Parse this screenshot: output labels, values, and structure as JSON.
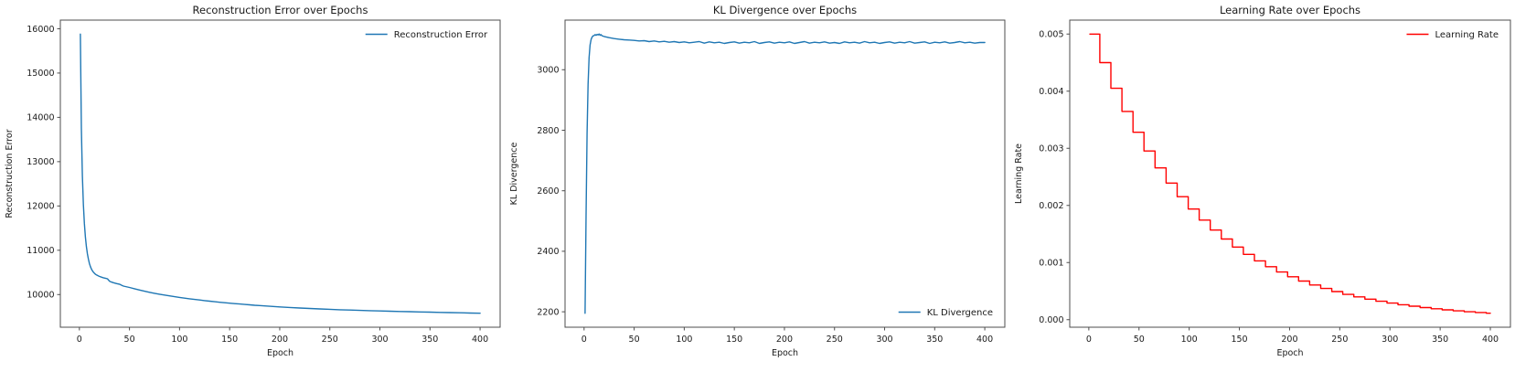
{
  "figure": {
    "background": "#ffffff",
    "text_color": "#1a1a1a",
    "spine_color": "#4d4d4d",
    "legend_border_color": "#cccccc",
    "blue": "#1f77b4",
    "red": "#ff0000"
  },
  "chart_data": [
    {
      "id": "reconstruction-error",
      "type": "line",
      "title": "Reconstruction Error over Epochs",
      "xlabel": "Epoch",
      "ylabel": "Reconstruction Error",
      "line_color": "#1f77b4",
      "legend": {
        "label": "Reconstruction Error",
        "position": "top-right"
      },
      "grid": false,
      "xlim": [
        -19,
        420
      ],
      "ylim": [
        9263,
        16195
      ],
      "xticks": [
        0,
        50,
        100,
        150,
        200,
        250,
        300,
        350,
        400
      ],
      "yticks": [
        10000,
        11000,
        12000,
        13000,
        14000,
        15000,
        16000
      ],
      "ytick_decimals": 0,
      "points": [
        [
          1,
          15880
        ],
        [
          2,
          13750
        ],
        [
          3,
          12680
        ],
        [
          4,
          12030
        ],
        [
          5,
          11600
        ],
        [
          6,
          11300
        ],
        [
          7,
          11080
        ],
        [
          8,
          10920
        ],
        [
          9,
          10800
        ],
        [
          10,
          10700
        ],
        [
          11,
          10630
        ],
        [
          12,
          10575
        ],
        [
          13,
          10535
        ],
        [
          14,
          10505
        ],
        [
          15,
          10480
        ],
        [
          16,
          10460
        ],
        [
          17,
          10445
        ],
        [
          18,
          10432
        ],
        [
          19,
          10420
        ],
        [
          20,
          10410
        ],
        [
          22,
          10394
        ],
        [
          24,
          10380
        ],
        [
          26,
          10368
        ],
        [
          28,
          10356
        ],
        [
          30,
          10302
        ],
        [
          32,
          10282
        ],
        [
          34,
          10267
        ],
        [
          36,
          10255
        ],
        [
          38,
          10244
        ],
        [
          40,
          10234
        ],
        [
          42,
          10212
        ],
        [
          44,
          10192
        ],
        [
          46,
          10181
        ],
        [
          48,
          10171
        ],
        [
          50,
          10161
        ],
        [
          55,
          10131
        ],
        [
          60,
          10102
        ],
        [
          65,
          10076
        ],
        [
          70,
          10051
        ],
        [
          75,
          10029
        ],
        [
          80,
          10008
        ],
        [
          85,
          9989
        ],
        [
          90,
          9971
        ],
        [
          95,
          9953
        ],
        [
          100,
          9936
        ],
        [
          105,
          9920
        ],
        [
          110,
          9905
        ],
        [
          115,
          9891
        ],
        [
          120,
          9877
        ],
        [
          125,
          9864
        ],
        [
          130,
          9851
        ],
        [
          135,
          9839
        ],
        [
          140,
          9827
        ],
        [
          145,
          9816
        ],
        [
          150,
          9806
        ],
        [
          155,
          9796
        ],
        [
          160,
          9786
        ],
        [
          165,
          9777
        ],
        [
          170,
          9768
        ],
        [
          175,
          9759
        ],
        [
          180,
          9751
        ],
        [
          185,
          9743
        ],
        [
          190,
          9736
        ],
        [
          195,
          9729
        ],
        [
          200,
          9722
        ],
        [
          210,
          9709
        ],
        [
          220,
          9697
        ],
        [
          230,
          9686
        ],
        [
          240,
          9676
        ],
        [
          250,
          9667
        ],
        [
          260,
          9658
        ],
        [
          270,
          9650
        ],
        [
          280,
          9643
        ],
        [
          290,
          9636
        ],
        [
          300,
          9630
        ],
        [
          310,
          9624
        ],
        [
          320,
          9618
        ],
        [
          330,
          9613
        ],
        [
          340,
          9608
        ],
        [
          350,
          9603
        ],
        [
          360,
          9598
        ],
        [
          370,
          9593
        ],
        [
          380,
          9588
        ],
        [
          390,
          9583
        ],
        [
          400,
          9578
        ]
      ]
    },
    {
      "id": "kl-divergence",
      "type": "line",
      "title": "KL Divergence over Epochs",
      "xlabel": "Epoch",
      "ylabel": "KL Divergence",
      "line_color": "#1f77b4",
      "legend": {
        "label": "KL Divergence",
        "position": "bottom-right"
      },
      "grid": false,
      "xlim": [
        -19,
        420
      ],
      "ylim": [
        2149,
        3164
      ],
      "xticks": [
        0,
        50,
        100,
        150,
        200,
        250,
        300,
        350,
        400
      ],
      "yticks": [
        2200,
        2400,
        2600,
        2800,
        3000
      ],
      "ytick_decimals": 0,
      "points": [
        [
          1,
          2195
        ],
        [
          2,
          2520
        ],
        [
          3,
          2790
        ],
        [
          4,
          2952
        ],
        [
          5,
          3040
        ],
        [
          6,
          3082
        ],
        [
          7,
          3100
        ],
        [
          8,
          3108
        ],
        [
          9,
          3112
        ],
        [
          10,
          3113
        ],
        [
          11,
          3116
        ],
        [
          12,
          3114
        ],
        [
          13,
          3117
        ],
        [
          14,
          3115
        ],
        [
          15,
          3118
        ],
        [
          16,
          3114
        ],
        [
          17,
          3116
        ],
        [
          18,
          3112
        ],
        [
          19,
          3111
        ],
        [
          20,
          3110
        ],
        [
          25,
          3106
        ],
        [
          30,
          3103
        ],
        [
          35,
          3101
        ],
        [
          40,
          3099
        ],
        [
          45,
          3098
        ],
        [
          50,
          3097
        ],
        [
          55,
          3095
        ],
        [
          60,
          3096
        ],
        [
          65,
          3093
        ],
        [
          70,
          3095
        ],
        [
          75,
          3092
        ],
        [
          80,
          3094
        ],
        [
          85,
          3091
        ],
        [
          90,
          3093
        ],
        [
          95,
          3090
        ],
        [
          100,
          3092
        ],
        [
          105,
          3089
        ],
        [
          110,
          3091
        ],
        [
          115,
          3093
        ],
        [
          120,
          3088
        ],
        [
          125,
          3092
        ],
        [
          130,
          3089
        ],
        [
          135,
          3091
        ],
        [
          140,
          3087
        ],
        [
          145,
          3090
        ],
        [
          150,
          3092
        ],
        [
          155,
          3088
        ],
        [
          160,
          3091
        ],
        [
          165,
          3089
        ],
        [
          170,
          3093
        ],
        [
          175,
          3087
        ],
        [
          180,
          3090
        ],
        [
          185,
          3092
        ],
        [
          190,
          3088
        ],
        [
          195,
          3091
        ],
        [
          200,
          3089
        ],
        [
          205,
          3092
        ],
        [
          210,
          3087
        ],
        [
          215,
          3090
        ],
        [
          220,
          3093
        ],
        [
          225,
          3088
        ],
        [
          230,
          3091
        ],
        [
          235,
          3089
        ],
        [
          240,
          3092
        ],
        [
          245,
          3088
        ],
        [
          250,
          3090
        ],
        [
          255,
          3087
        ],
        [
          260,
          3092
        ],
        [
          265,
          3089
        ],
        [
          270,
          3091
        ],
        [
          275,
          3088
        ],
        [
          280,
          3093
        ],
        [
          285,
          3089
        ],
        [
          290,
          3091
        ],
        [
          295,
          3087
        ],
        [
          300,
          3090
        ],
        [
          305,
          3092
        ],
        [
          310,
          3088
        ],
        [
          315,
          3091
        ],
        [
          320,
          3089
        ],
        [
          325,
          3093
        ],
        [
          330,
          3088
        ],
        [
          335,
          3090
        ],
        [
          340,
          3092
        ],
        [
          345,
          3087
        ],
        [
          350,
          3091
        ],
        [
          355,
          3089
        ],
        [
          360,
          3092
        ],
        [
          365,
          3088
        ],
        [
          370,
          3090
        ],
        [
          375,
          3093
        ],
        [
          380,
          3089
        ],
        [
          385,
          3091
        ],
        [
          390,
          3088
        ],
        [
          395,
          3090
        ],
        [
          400,
          3090
        ]
      ]
    },
    {
      "id": "learning-rate",
      "type": "line",
      "title": "Learning Rate over Epochs",
      "xlabel": "Epoch",
      "ylabel": "Learning Rate",
      "line_color": "#ff0000",
      "legend": {
        "label": "Learning Rate",
        "position": "top-right"
      },
      "grid": false,
      "xlim": [
        -19,
        420
      ],
      "ylim": [
        -0.000132,
        0.005244
      ],
      "xticks": [
        0,
        50,
        100,
        150,
        200,
        250,
        300,
        350,
        400
      ],
      "yticks": [
        0.0,
        0.001,
        0.002,
        0.003,
        0.004,
        0.005
      ],
      "ytick_decimals": 3,
      "steps": {
        "x_start": 1,
        "x_end": 400,
        "step_size": 11,
        "initial_lr": 0.005,
        "decay_factor": 0.9,
        "values": [
          0.005,
          0.0045,
          0.00405,
          0.003645,
          0.0032805,
          0.00295245,
          0.00265721,
          0.00239148,
          0.00215234,
          0.0019371,
          0.00174339,
          0.00156905,
          0.00141215,
          0.00127093,
          0.00114384,
          0.00102946,
          0.00092651,
          0.00083386,
          0.00075047,
          0.00067543,
          0.00060788,
          0.0005471,
          0.00049239,
          0.00044315,
          0.00039883,
          0.00035895,
          0.00032305,
          0.00029075,
          0.00026167,
          0.00023551,
          0.00021196,
          0.00019076,
          0.00017168,
          0.00015452,
          0.00013906,
          0.00012516,
          0.00011264
        ]
      }
    }
  ]
}
